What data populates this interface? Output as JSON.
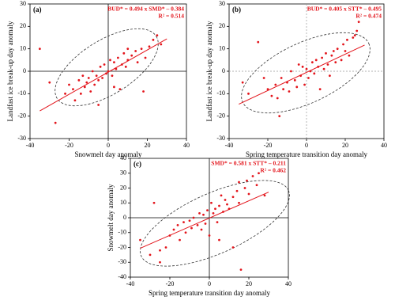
{
  "chart_data": [
    {
      "type": "scatter",
      "panel_label": "(a)",
      "x_label": "Snowmelt day anomaly",
      "y_label": "Landfast ice break-up day anomaly",
      "annotations": [
        "BUD* = 0.494 x SMD* – 0.384",
        "R² = 0.514"
      ],
      "trendline": {
        "slope": 0.494,
        "intercept": -0.384
      },
      "color": "#e3141b",
      "zero_lines": "solid",
      "x": [
        -35,
        -30,
        -27,
        -22,
        -20,
        -18,
        -17,
        -15,
        -14,
        -13,
        -12,
        -11,
        -10,
        -9,
        -8,
        -7,
        -6,
        -5,
        -4,
        -3,
        -2,
        -1,
        0,
        1,
        2,
        3,
        4,
        5,
        6,
        7,
        8,
        9,
        10,
        12,
        14,
        15,
        17,
        19,
        21,
        23,
        25,
        27,
        -5,
        3,
        10,
        18
      ],
      "values": [
        10,
        -5,
        -23,
        -10,
        -6,
        -8,
        -13,
        -4,
        -10,
        -2,
        -7,
        -5,
        -3,
        -9,
        0,
        -6,
        -2,
        -4,
        2,
        -3,
        3,
        -1,
        0,
        5,
        -2,
        4,
        1,
        6,
        -8,
        3,
        8,
        2,
        5,
        7,
        9,
        4,
        10,
        6,
        11,
        14,
        16,
        12,
        -15,
        -7,
        10,
        -9
      ],
      "xlim": [
        -40,
        40
      ],
      "xticks": [
        -40,
        -20,
        0,
        20,
        40
      ],
      "ylim": [
        -30,
        30
      ],
      "yticks": [
        -30,
        -20,
        -10,
        0,
        10,
        20,
        30
      ]
    },
    {
      "type": "scatter",
      "panel_label": "(b)",
      "x_label": "Spring temperature transition day anomaly",
      "y_label": "Landfast ice break-up day anomaly",
      "annotations": [
        "BUD* = 0.405 x STT* – 0.495",
        "R² = 0.474"
      ],
      "trendline": {
        "slope": 0.405,
        "intercept": -0.495
      },
      "color": "#e3141b",
      "zero_lines": "dashed",
      "x": [
        -33,
        -30,
        -25,
        -22,
        -20,
        -18,
        -16,
        -15,
        -13,
        -12,
        -10,
        -9,
        -8,
        -6,
        -5,
        -4,
        -3,
        -2,
        -1,
        0,
        1,
        2,
        3,
        4,
        5,
        6,
        7,
        8,
        9,
        10,
        11,
        12,
        13,
        14,
        15,
        16,
        18,
        19,
        20,
        21,
        22,
        24,
        25,
        26,
        27,
        -14
      ],
      "values": [
        -5,
        -10,
        13,
        -3,
        -8,
        -11,
        -6,
        -12,
        -3,
        -8,
        -5,
        -9,
        0,
        -4,
        -7,
        3,
        -2,
        2,
        -6,
        1,
        -3,
        0,
        4,
        -1,
        5,
        2,
        -8,
        6,
        1,
        8,
        3,
        -2,
        7,
        9,
        4,
        10,
        5,
        12,
        9,
        14,
        7,
        15,
        16,
        18,
        22,
        -20
      ],
      "xlim": [
        -40,
        40
      ],
      "xticks": [
        -40,
        -20,
        0,
        20,
        40
      ],
      "ylim": [
        -30,
        30
      ],
      "yticks": [
        -30,
        -20,
        -10,
        0,
        10,
        20,
        30
      ]
    },
    {
      "type": "scatter",
      "panel_label": "(c)",
      "x_label": "Spring temperature transition day anomaly",
      "y_label": "Snowmelt day anomaly",
      "annotations": [
        "SMD* = 0.581 x STT* – 0.211",
        "R² = 0.462"
      ],
      "trendline": {
        "slope": 0.581,
        "intercept": -0.211
      },
      "color": "#e3141b",
      "zero_lines": "solid",
      "x": [
        -35,
        -30,
        -28,
        -25,
        -22,
        -20,
        -18,
        -16,
        -15,
        -13,
        -12,
        -10,
        -9,
        -8,
        -6,
        -5,
        -4,
        -3,
        -2,
        -1,
        0,
        1,
        2,
        3,
        4,
        5,
        6,
        7,
        8,
        9,
        10,
        12,
        14,
        15,
        16,
        18,
        19,
        20,
        22,
        24,
        25,
        -25,
        12,
        5,
        15,
        28
      ],
      "values": [
        -15,
        -25,
        10,
        -30,
        -20,
        -12,
        -8,
        -5,
        -15,
        -3,
        -10,
        -2,
        -7,
        0,
        -5,
        3,
        -8,
        2,
        -4,
        5,
        -12,
        10,
        3,
        6,
        -3,
        8,
        15,
        4,
        12,
        9,
        6,
        14,
        18,
        10,
        -35,
        20,
        25,
        16,
        28,
        22,
        30,
        -22,
        -20,
        -15,
        24,
        15
      ],
      "xlim": [
        -40,
        40
      ],
      "xticks": [
        -40,
        -20,
        0,
        20,
        40
      ],
      "ylim": [
        -40,
        40
      ],
      "yticks": [
        -40,
        -30,
        -20,
        -10,
        0,
        10,
        20,
        30,
        40
      ]
    }
  ]
}
